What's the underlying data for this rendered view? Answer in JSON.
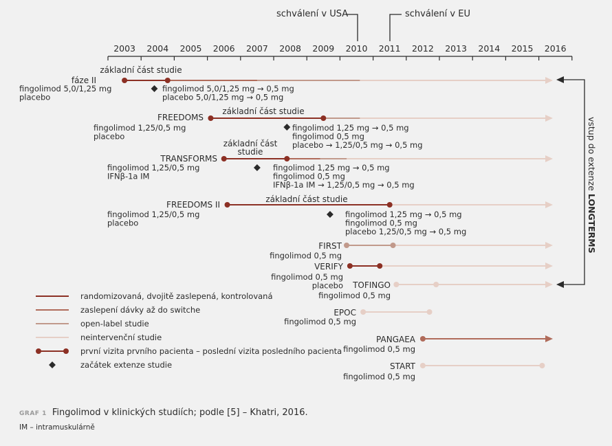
{
  "colors": {
    "rand": "#8c3024",
    "blinded": "#b06b5a",
    "open": "#c1998b",
    "nonint": "#e6cfc6",
    "text": "#2b2b2b",
    "diamond": "#2b2b2b",
    "background": "#f1f1f1"
  },
  "timeline": {
    "years": [
      "2003",
      "2004",
      "2005",
      "2006",
      "2007",
      "2008",
      "2009",
      "2010",
      "2011",
      "2012",
      "2013",
      "2014",
      "2015",
      "2016"
    ],
    "approval_usa": "schválení v USA",
    "approval_eu": "schválení v EU"
  },
  "extension_label_prefix": "vstup do extenze ",
  "extension_label_bold": "LONGTERMS",
  "studies": [
    {
      "name": "fáze II",
      "above": "základní část studie",
      "arms": [
        "fingolimod 5,0/1,25 mg",
        "placebo"
      ],
      "ext_lines": [
        "fingolimod 5,0/1,25 mg → 0,5 mg",
        "placebo 5,0/1,25 mg → 0,5 mg"
      ],
      "start": 2003.0,
      "first_end": 2004.3,
      "blind_end": 2007.0,
      "open_end": 2010.1,
      "ext_start": 2003.9
    },
    {
      "name": "FREEDOMS",
      "above": "základní část studie",
      "arms": [
        "fingolimod 1,25/0,5 mg",
        "placebo"
      ],
      "ext_lines": [
        "fingolimod 1,25 mg → 0,5 mg",
        "fingolimod 0,5 mg",
        "placebo → 1,25/0,5 mg → 0,5 mg"
      ],
      "start": 2005.6,
      "first_end": 2009.0,
      "blind_end": 2009.0,
      "open_end": 2010.1,
      "ext_start": 2007.9
    },
    {
      "name": "TRANSFORMS",
      "above": "základní část studie",
      "arms": [
        "fingolimod 1,25/0,5 mg",
        "IFNβ-1a IM"
      ],
      "ext_lines": [
        "fingolimod 1,25 mg → 0,5 mg",
        "fingolimod 0,5 mg",
        "IFNβ-1a IM → 1,25/0,5 mg → 0,5 mg"
      ],
      "start": 2006.0,
      "first_end": 2007.9,
      "blind_end": 2008.9,
      "open_end": 2009.7,
      "ext_start": 2007.0
    },
    {
      "name": "FREEDOMS II",
      "above": "základní část studie",
      "arms": [
        "fingolimod 1,25/0,5 mg",
        "placebo"
      ],
      "ext_lines": [
        "fingolimod 1,25 mg → 0,5 mg",
        "fingolimod 0,5 mg",
        "placebo 1,25/0,5 mg → 0,5 mg"
      ],
      "start": 2006.1,
      "first_end": 2011.0,
      "blind_end": 2011.0,
      "open_end": 2011.0,
      "ext_start": 2009.2
    },
    {
      "name": "FIRST",
      "arms": [
        "fingolimod 0,5 mg"
      ],
      "start": 2009.7,
      "first_end": 2011.1
    },
    {
      "name": "VERIFY",
      "arms": [
        "fingolimod 0,5 mg",
        "placebo"
      ],
      "start": 2009.8,
      "first_end": 2010.7
    },
    {
      "name": "TOFINGO",
      "arms": [
        "fingolimod 0,5 mg"
      ],
      "start": 2011.2,
      "first_end": 2012.4
    },
    {
      "name": "EPOC",
      "arms": [
        "fingolimod 0,5 mg"
      ],
      "start": 2010.2,
      "first_end": 2012.2
    },
    {
      "name": "PANGAEA",
      "arms": [
        "fingolimod 0,5 mg"
      ],
      "start": 2012.0
    },
    {
      "name": "START",
      "arms": [
        "fingolimod 0,5 mg"
      ],
      "start": 2012.0,
      "first_end": 2015.6
    }
  ],
  "legend": [
    {
      "key": "rand",
      "label": "randomizovaná, dvojitě zaslepená, kontrolovaná"
    },
    {
      "key": "blinded",
      "label": "zaslepení dávky až do switche"
    },
    {
      "key": "open",
      "label": "open-label studie"
    },
    {
      "key": "nonint",
      "label": "neintervenční studie"
    },
    {
      "key": "visit",
      "label": "první vizita prvního pacienta – poslední vizita posledního pacienta"
    },
    {
      "key": "diamond",
      "label": "začátek extenze studie"
    }
  ],
  "caption": {
    "label": "GRAF 1",
    "text": "Fingolimod v klinických studiích; podle [5] – Khatri, 2016."
  },
  "note": "IM – intramuskulárně"
}
